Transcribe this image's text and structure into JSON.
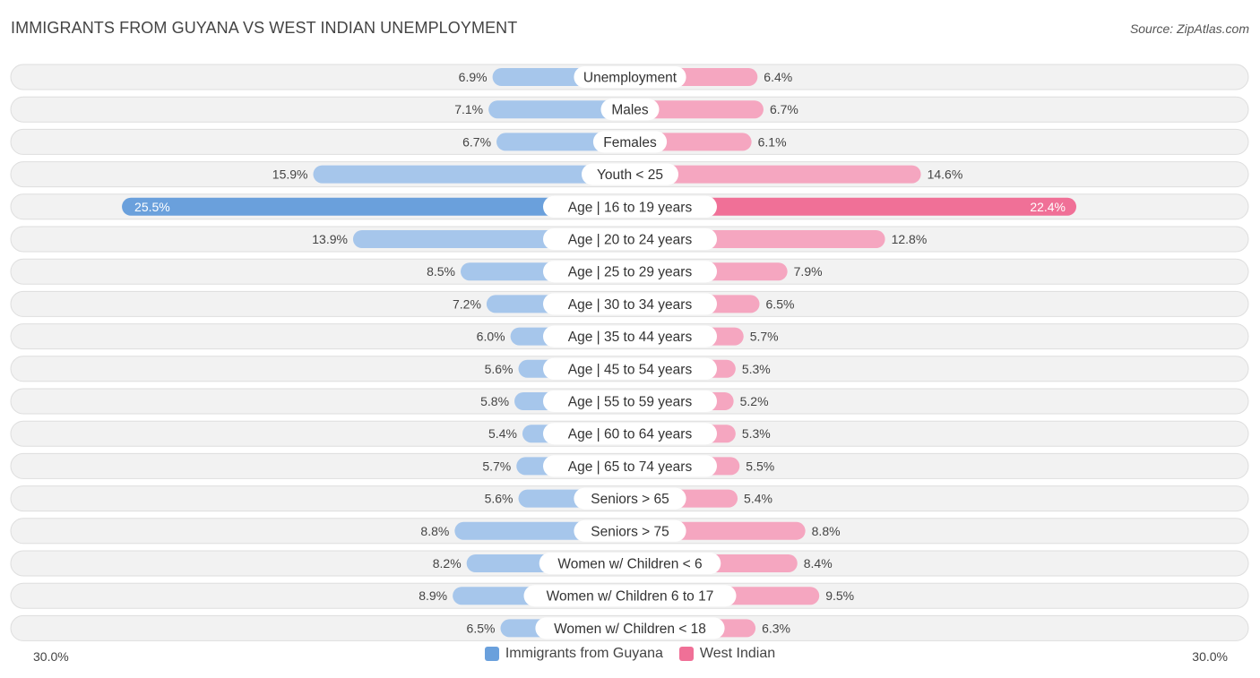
{
  "title": "IMMIGRANTS FROM GUYANA VS WEST INDIAN UNEMPLOYMENT",
  "source": "Source: ZipAtlas.com",
  "colors": {
    "left": "#a6c6eb",
    "left_strong": "#6aa0dc",
    "right": "#f5a6c0",
    "right_strong": "#f07097",
    "track": "#f2f2f2",
    "track_border": "#dedede"
  },
  "axis": {
    "left_label": "30.0%",
    "right_label": "30.0%"
  },
  "chart_data": {
    "type": "bar",
    "orientation": "horizontal-diverging",
    "title": "IMMIGRANTS FROM GUYANA VS WEST INDIAN UNEMPLOYMENT",
    "xlim": [
      0,
      30
    ],
    "categories": [
      "Unemployment",
      "Males",
      "Females",
      "Youth < 25",
      "Age | 16 to 19 years",
      "Age | 20 to 24 years",
      "Age | 25 to 29 years",
      "Age | 30 to 34 years",
      "Age | 35 to 44 years",
      "Age | 45 to 54 years",
      "Age | 55 to 59 years",
      "Age | 60 to 64 years",
      "Age | 65 to 74 years",
      "Seniors > 65",
      "Seniors > 75",
      "Women w/ Children < 6",
      "Women w/ Children 6 to 17",
      "Women w/ Children < 18"
    ],
    "series": [
      {
        "name": "Immigrants from Guyana",
        "values": [
          6.9,
          7.1,
          6.7,
          15.9,
          25.5,
          13.9,
          8.5,
          7.2,
          6.0,
          5.6,
          5.8,
          5.4,
          5.7,
          5.6,
          8.8,
          8.2,
          8.9,
          6.5
        ],
        "labels": [
          "6.9%",
          "7.1%",
          "6.7%",
          "15.9%",
          "25.5%",
          "13.9%",
          "8.5%",
          "7.2%",
          "6.0%",
          "5.6%",
          "5.8%",
          "5.4%",
          "5.7%",
          "5.6%",
          "8.8%",
          "8.2%",
          "8.9%",
          "6.5%"
        ]
      },
      {
        "name": "West Indian",
        "values": [
          6.4,
          6.7,
          6.1,
          14.6,
          22.4,
          12.8,
          7.9,
          6.5,
          5.7,
          5.3,
          5.2,
          5.3,
          5.5,
          5.4,
          8.8,
          8.4,
          9.5,
          6.3
        ],
        "labels": [
          "6.4%",
          "6.7%",
          "6.1%",
          "14.6%",
          "22.4%",
          "12.8%",
          "7.9%",
          "6.5%",
          "5.7%",
          "5.3%",
          "5.2%",
          "5.3%",
          "5.5%",
          "5.4%",
          "8.8%",
          "8.4%",
          "9.5%",
          "6.3%"
        ]
      }
    ],
    "highlight_index": 4,
    "legend": [
      "Immigrants from Guyana",
      "West Indian"
    ],
    "legend_position": "bottom-center"
  }
}
